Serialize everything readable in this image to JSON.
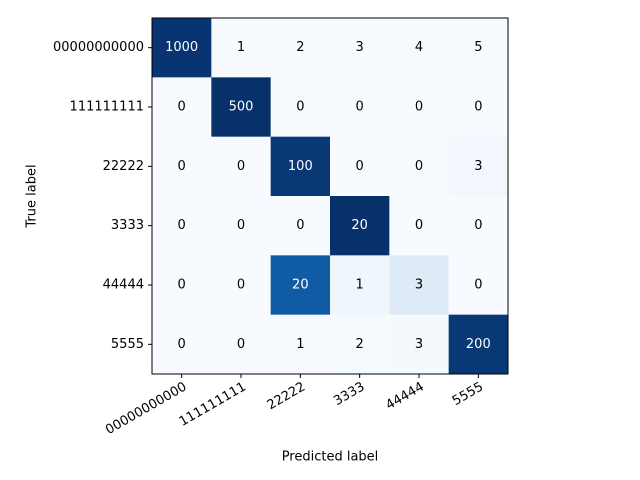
{
  "chart_data": {
    "type": "heatmap",
    "x_label": "Predicted label",
    "y_label": "True label",
    "x_categories": [
      "00000000000",
      "111111111",
      "22222",
      "3333",
      "44444",
      "5555"
    ],
    "y_categories": [
      "00000000000",
      "111111111",
      "22222",
      "3333",
      "44444",
      "5555"
    ],
    "values": [
      [
        1000,
        1,
        2,
        3,
        4,
        5
      ],
      [
        0,
        500,
        0,
        0,
        0,
        0
      ],
      [
        0,
        0,
        100,
        0,
        0,
        3
      ],
      [
        0,
        0,
        0,
        20,
        0,
        0
      ],
      [
        0,
        0,
        20,
        1,
        3,
        0
      ],
      [
        0,
        0,
        1,
        2,
        3,
        200
      ]
    ],
    "colormap": "Blues",
    "normalize": "row"
  }
}
